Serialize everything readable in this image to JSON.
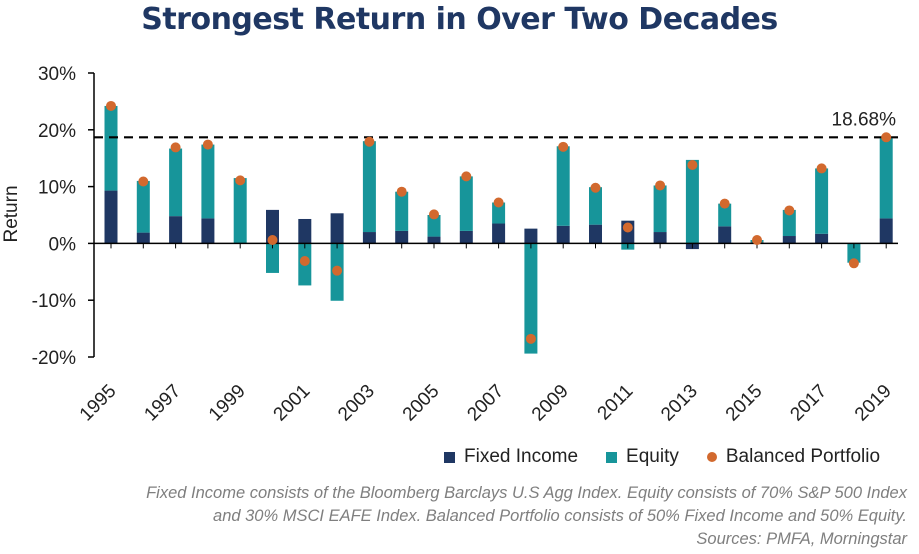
{
  "chart_data": {
    "type": "bar",
    "title": "Strongest Return in Over Two Decades",
    "ylabel": "Return",
    "xlabel": "",
    "ylim": [
      -20,
      30
    ],
    "yticks": [
      30,
      20,
      10,
      0,
      -10,
      -20
    ],
    "ytick_labels": [
      "30%",
      "20%",
      "10%",
      "0%",
      "-10%",
      "-20%"
    ],
    "xtick_labels": [
      "1995",
      "1997",
      "1999",
      "2001",
      "2003",
      "2005",
      "2007",
      "2009",
      "2011",
      "2013",
      "2015",
      "2017",
      "2019"
    ],
    "categories": [
      "1995",
      "1996",
      "1997",
      "1998",
      "1999",
      "2000",
      "2001",
      "2002",
      "2003",
      "2004",
      "2005",
      "2006",
      "2007",
      "2008",
      "2009",
      "2010",
      "2011",
      "2012",
      "2013",
      "2014",
      "2015",
      "2016",
      "2017",
      "2018",
      "2019"
    ],
    "series": [
      {
        "name": "Fixed Income",
        "color": "#1f3763",
        "values": [
          9.3,
          1.9,
          4.8,
          4.4,
          0.0,
          5.9,
          4.3,
          5.3,
          2.0,
          2.2,
          1.2,
          2.2,
          3.5,
          2.6,
          3.1,
          3.3,
          4.0,
          2.0,
          -1.0,
          3.0,
          0.2,
          1.3,
          1.7,
          0.0,
          4.4
        ]
      },
      {
        "name": "Equity",
        "color": "#17959a",
        "values": [
          14.9,
          9.1,
          11.9,
          13.0,
          11.5,
          -5.2,
          -7.4,
          -10.1,
          16.0,
          6.9,
          3.8,
          9.6,
          3.7,
          -19.4,
          14.0,
          6.6,
          -1.1,
          8.2,
          14.7,
          4.0,
          0.4,
          4.6,
          11.5,
          -3.4,
          14.1
        ]
      },
      {
        "name": "Balanced Portfolio",
        "color": "#d2692e",
        "values": [
          24.2,
          10.9,
          16.9,
          17.4,
          11.1,
          0.6,
          -3.1,
          -4.8,
          17.9,
          9.1,
          5.1,
          11.8,
          7.2,
          -16.8,
          17.0,
          9.8,
          2.8,
          10.2,
          13.8,
          7.0,
          0.6,
          5.8,
          13.2,
          -3.5,
          18.68
        ]
      }
    ],
    "reference_line": {
      "value": 18.68,
      "label": "18.68%",
      "style": "dashed"
    },
    "legend_position": "bottom-right"
  },
  "legend": {
    "items": [
      {
        "label": "Fixed Income",
        "color": "#1f3763",
        "shape": "square"
      },
      {
        "label": "Equity",
        "color": "#17959a",
        "shape": "square"
      },
      {
        "label": "Balanced Portfolio",
        "color": "#d2692e",
        "shape": "dot"
      }
    ]
  },
  "footnote": {
    "line1": "Fixed Income consists of the Bloomberg Barclays U.S Agg Index. Equity consists of 70% S&P 500 Index",
    "line2": "and 30% MSCI EAFE Index. Balanced Portfolio consists of 50% Fixed Income and 50% Equity.",
    "line3": "Sources: PMFA, Morningstar"
  }
}
